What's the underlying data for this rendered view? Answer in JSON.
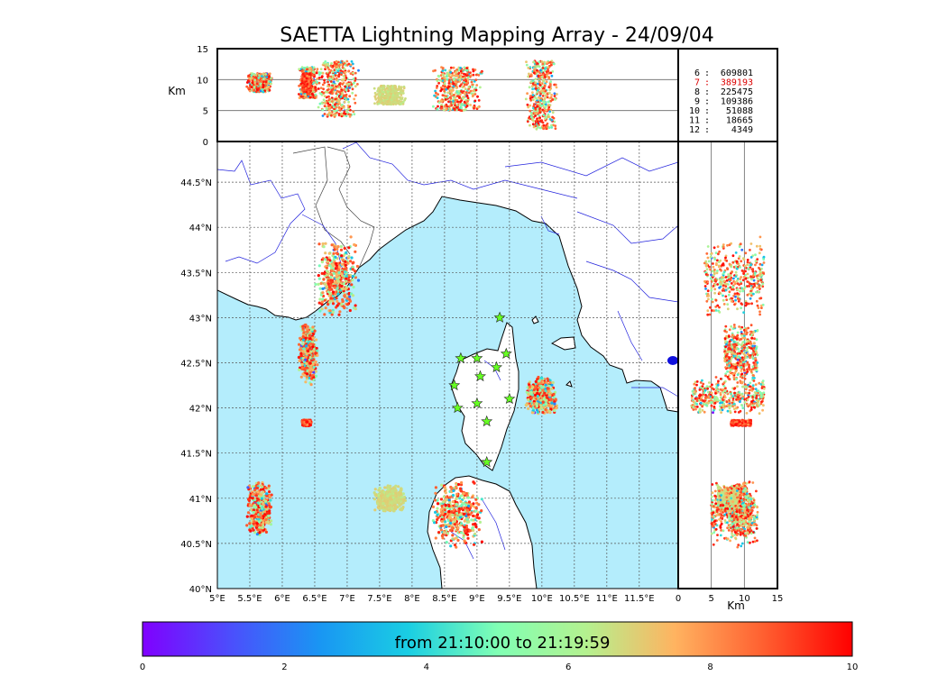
{
  "chart_data": {
    "type": "scatter",
    "title": "SAETTA Lightning Mapping Array - 24/09/04",
    "altitude_unit": "Km",
    "altitude_ticks": [
      "0",
      "5",
      "10",
      "15"
    ],
    "altitude_range": [
      0,
      15
    ],
    "lon_ticks": [
      "5°E",
      "5.5°E",
      "6°E",
      "6.5°E",
      "7°E",
      "7.5°E",
      "8°E",
      "8.5°E",
      "9°E",
      "9.5°E",
      "10°E",
      "10.5°E",
      "11°E",
      "11.5°E"
    ],
    "lon_range": [
      5,
      12.1
    ],
    "lat_ticks": [
      "40°N",
      "40.5°N",
      "41°N",
      "41.5°N",
      "42°N",
      "42.5°N",
      "43°N",
      "43.5°N",
      "44°N",
      "44.5°N"
    ],
    "lat_range": [
      40,
      44.95
    ],
    "counts": [
      {
        "n": "6",
        "value": "609801",
        "color": "#000000"
      },
      {
        "n": "7",
        "value": "389193",
        "color": "#dd0000"
      },
      {
        "n": "8",
        "value": "225475",
        "color": "#000000"
      },
      {
        "n": "9",
        "value": "109386",
        "color": "#000000"
      },
      {
        "n": "10",
        "value": "51088",
        "color": "#000000"
      },
      {
        "n": "11",
        "value": "18665",
        "color": "#000000"
      },
      {
        "n": "12",
        "value": "4349",
        "color": "#000000"
      }
    ],
    "colorbar": {
      "label": "from 21:10:00 to 21:19:59",
      "ticks": [
        "0",
        "2",
        "4",
        "6",
        "8",
        "10"
      ],
      "range": [
        0,
        10
      ],
      "colormap": "rainbow"
    },
    "clusters": [
      {
        "lon": [
          5.45,
          5.85
        ],
        "lat": [
          40.55,
          41.2
        ],
        "alt": [
          8,
          11
        ],
        "time": [
          0,
          10
        ]
      },
      {
        "lon": [
          6.25,
          6.55
        ],
        "lat": [
          42.25,
          42.95
        ],
        "alt": [
          7,
          12
        ],
        "time": [
          0,
          10
        ]
      },
      {
        "lon": [
          6.5,
          7.2
        ],
        "lat": [
          43.0,
          43.9
        ],
        "alt": [
          4,
          13
        ],
        "time": [
          0,
          10
        ]
      },
      {
        "lon": [
          6.3,
          6.45
        ],
        "lat": [
          41.8,
          41.87
        ],
        "alt": [
          8,
          11
        ],
        "time": [
          7,
          10
        ]
      },
      {
        "lon": [
          7.4,
          7.9
        ],
        "lat": [
          40.85,
          41.15
        ],
        "alt": [
          6,
          9
        ],
        "time": [
          6,
          7
        ]
      },
      {
        "lon": [
          8.3,
          9.1
        ],
        "lat": [
          40.45,
          41.2
        ],
        "alt": [
          5,
          12
        ],
        "time": [
          0,
          10
        ]
      },
      {
        "lon": [
          9.75,
          10.25
        ],
        "lat": [
          41.9,
          42.35
        ],
        "alt": [
          2,
          13
        ],
        "time": [
          0,
          10
        ]
      }
    ],
    "stations": [
      [
        9.35,
        43.0
      ],
      [
        8.75,
        42.55
      ],
      [
        9.0,
        42.55
      ],
      [
        9.45,
        42.6
      ],
      [
        9.05,
        42.35
      ],
      [
        9.3,
        42.45
      ],
      [
        8.65,
        42.25
      ],
      [
        9.5,
        42.1
      ],
      [
        9.0,
        42.05
      ],
      [
        8.7,
        42.0
      ],
      [
        9.15,
        41.85
      ],
      [
        9.15,
        41.4
      ]
    ],
    "stations_color": "#66ff22",
    "sea_color": "#b4edfc",
    "coast_color": "#000000",
    "river_color": "#2222dd"
  }
}
